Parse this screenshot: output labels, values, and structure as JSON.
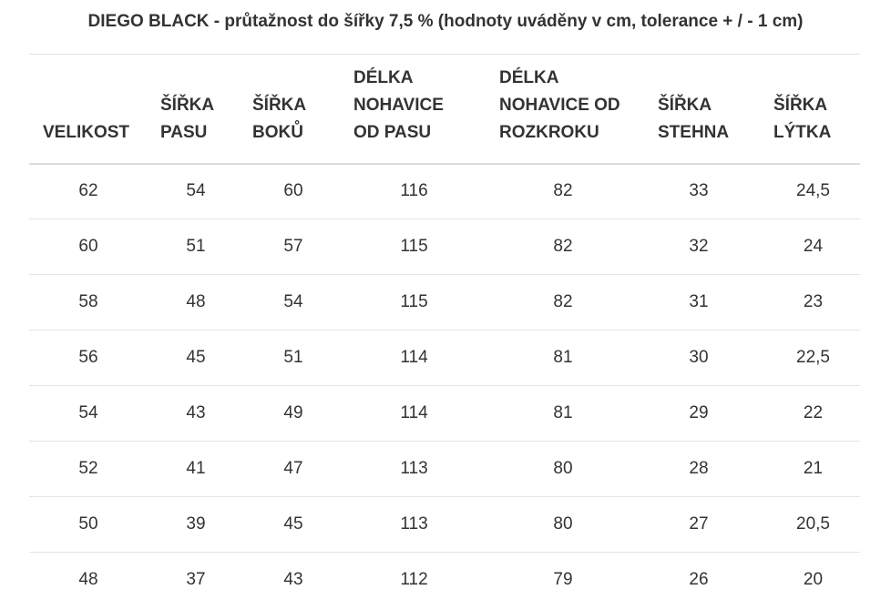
{
  "title": "DIEGO BLACK - průtažnost do šířky 7,5 % (hodnoty uváděny v cm, tolerance + / - 1 cm)",
  "table": {
    "headers": [
      [
        "VELIKOST"
      ],
      [
        "ŠÍŘKA",
        "PASU"
      ],
      [
        "ŠÍŘKA",
        "BOKŮ"
      ],
      [
        "DÉLKA",
        "NOHAVICE",
        "OD PASU"
      ],
      [
        "DÉLKA",
        "NOHAVICE OD",
        "ROZKROKU"
      ],
      [
        "ŠÍŘKA",
        "STEHNA"
      ],
      [
        "ŠÍŘKA",
        "LÝTKA"
      ]
    ],
    "rows": [
      [
        "62",
        "54",
        "60",
        "116",
        "82",
        "33",
        "24,5"
      ],
      [
        "60",
        "51",
        "57",
        "115",
        "82",
        "32",
        "24"
      ],
      [
        "58",
        "48",
        "54",
        "115",
        "82",
        "31",
        "23"
      ],
      [
        "56",
        "45",
        "51",
        "114",
        "81",
        "30",
        "22,5"
      ],
      [
        "54",
        "43",
        "49",
        "114",
        "81",
        "29",
        "22"
      ],
      [
        "52",
        "41",
        "47",
        "113",
        "80",
        "28",
        "21"
      ],
      [
        "50",
        "39",
        "45",
        "113",
        "80",
        "27",
        "20,5"
      ],
      [
        "48",
        "37",
        "43",
        "112",
        "79",
        "26",
        "20"
      ]
    ]
  }
}
